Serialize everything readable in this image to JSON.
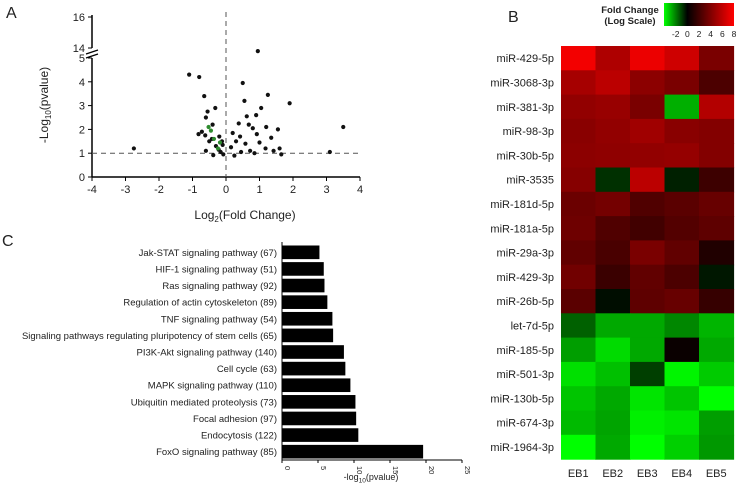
{
  "panels": {
    "a": "A",
    "b": "B",
    "c": "C"
  },
  "chart_data": [
    {
      "panel": "A",
      "type": "scatter",
      "xlabel": "Log2(Fold Change)",
      "ylabel": "-Log10(pvalue)",
      "xlim": [
        -4,
        4
      ],
      "ylim_lower": [
        0,
        5
      ],
      "ylim_upper": [
        14,
        16
      ],
      "x_ticks": [
        -4,
        -3,
        -2,
        -1,
        0,
        1,
        2,
        3,
        4
      ],
      "y_ticks": [
        0,
        1,
        2,
        3,
        4,
        5,
        14,
        16
      ],
      "threshold_y": 1,
      "threshold_x": 0,
      "points": [
        {
          "x": -2.75,
          "y": 1.2
        },
        {
          "x": -1.1,
          "y": 4.3
        },
        {
          "x": -0.8,
          "y": 4.2
        },
        {
          "x": -0.65,
          "y": 3.4
        },
        {
          "x": -0.6,
          "y": 2.5
        },
        {
          "x": -0.55,
          "y": 2.75
        },
        {
          "x": -0.82,
          "y": 1.8
        },
        {
          "x": -0.72,
          "y": 1.9
        },
        {
          "x": -0.62,
          "y": 1.75
        },
        {
          "x": -0.4,
          "y": 2.2
        },
        {
          "x": -0.32,
          "y": 2.9
        },
        {
          "x": -0.42,
          "y": 1.6
        },
        {
          "x": -0.2,
          "y": 1.7
        },
        {
          "x": -0.12,
          "y": 1.5
        },
        {
          "x": -0.5,
          "y": 1.5
        },
        {
          "x": -0.3,
          "y": 1.3
        },
        {
          "x": -0.6,
          "y": 1.1
        },
        {
          "x": -0.22,
          "y": 1.15
        },
        {
          "x": -0.1,
          "y": 1.35
        },
        {
          "x": -0.16,
          "y": 1.05
        },
        {
          "x": -0.08,
          "y": 0.95
        },
        {
          "x": -0.38,
          "y": 0.92
        },
        {
          "x": 0.5,
          "y": 3.95
        },
        {
          "x": 1.25,
          "y": 3.45
        },
        {
          "x": 0.55,
          "y": 3.2
        },
        {
          "x": 1.05,
          "y": 2.9
        },
        {
          "x": 1.9,
          "y": 3.1
        },
        {
          "x": 0.9,
          "y": 2.6
        },
        {
          "x": 0.62,
          "y": 2.55
        },
        {
          "x": 0.2,
          "y": 1.85
        },
        {
          "x": 0.38,
          "y": 2.25
        },
        {
          "x": 0.68,
          "y": 2.2
        },
        {
          "x": 1.2,
          "y": 2.1
        },
        {
          "x": 0.8,
          "y": 2.05
        },
        {
          "x": 1.55,
          "y": 2.0
        },
        {
          "x": 0.42,
          "y": 1.7
        },
        {
          "x": 0.92,
          "y": 1.8
        },
        {
          "x": 1.35,
          "y": 1.65
        },
        {
          "x": 0.3,
          "y": 1.5
        },
        {
          "x": 0.58,
          "y": 1.4
        },
        {
          "x": 1.0,
          "y": 1.45
        },
        {
          "x": 1.18,
          "y": 1.2
        },
        {
          "x": 0.72,
          "y": 1.1
        },
        {
          "x": 0.45,
          "y": 1.05
        },
        {
          "x": 0.85,
          "y": 1.0
        },
        {
          "x": 0.15,
          "y": 1.25
        },
        {
          "x": 1.6,
          "y": 1.2
        },
        {
          "x": 1.42,
          "y": 1.1
        },
        {
          "x": 0.25,
          "y": 0.9
        },
        {
          "x": 1.65,
          "y": 0.95
        },
        {
          "x": 3.5,
          "y": 2.1
        },
        {
          "x": 3.1,
          "y": 1.05
        },
        {
          "x": 0.95,
          "y": 13.8
        }
      ],
      "green_points": [
        {
          "x": -0.52,
          "y": 2.1
        },
        {
          "x": -0.45,
          "y": 1.95
        },
        {
          "x": -0.36,
          "y": 1.6
        },
        {
          "x": -0.18,
          "y": 1.45
        },
        {
          "x": -0.24,
          "y": 1.2
        }
      ]
    },
    {
      "panel": "B",
      "type": "heatmap",
      "legend_title": "Fold Change",
      "legend_subtitle": "(Log Scale)",
      "legend_ticks": [
        "-2",
        "0",
        "2",
        "4",
        "6",
        "8"
      ],
      "scale_min": -4,
      "scale_max": 8,
      "colors": {
        "low": "#00ff00",
        "mid": "#000000",
        "high": "#ff0000"
      },
      "columns": [
        "EB1",
        "EB2",
        "EB3",
        "EB4",
        "EB5"
      ],
      "rows": [
        "miR-429-5p",
        "miR-3068-3p",
        "miR-381-3p",
        "miR-98-3p",
        "miR-30b-5p",
        "miR-3535",
        "miR-181d-5p",
        "miR-181a-5p",
        "miR-29a-3p",
        "miR-429-3p",
        "miR-26b-5p",
        "let-7d-5p",
        "miR-185-5p",
        "miR-501-3p",
        "miR-130b-5p",
        "miR-674-3p",
        "miR-1964-3p"
      ],
      "values": [
        [
          7.5,
          4.8,
          7.2,
          6.0,
          3.0
        ],
        [
          4.5,
          5.3,
          3.6,
          3.0,
          1.6
        ],
        [
          3.8,
          4.0,
          3.0,
          -2.5,
          5.0
        ],
        [
          3.5,
          3.8,
          4.3,
          3.5,
          3.3
        ],
        [
          3.6,
          3.7,
          3.8,
          3.9,
          3.3
        ],
        [
          3.4,
          -0.5,
          5.3,
          -0.3,
          1.2
        ],
        [
          2.5,
          2.8,
          1.7,
          2.0,
          2.4
        ],
        [
          2.6,
          1.7,
          1.3,
          1.8,
          2.1
        ],
        [
          2.2,
          1.5,
          3.0,
          2.2,
          0.5
        ],
        [
          2.7,
          1.1,
          2.2,
          1.6,
          -0.2
        ],
        [
          2.0,
          -0.1,
          2.1,
          2.4,
          1.0
        ],
        [
          -1.2,
          -2.4,
          -2.4,
          -1.8,
          -2.6
        ],
        [
          -2.2,
          -3.3,
          -2.4,
          0.1,
          -2.4
        ],
        [
          -3.4,
          -2.8,
          -0.7,
          -3.8,
          -3.0
        ],
        [
          -2.9,
          -2.4,
          -3.5,
          -2.9,
          -4.0
        ],
        [
          -2.7,
          -2.3,
          -3.7,
          -3.5,
          -2.2
        ],
        [
          -4.0,
          -2.4,
          -4.0,
          -3.1,
          -2.1
        ]
      ]
    },
    {
      "panel": "C",
      "type": "bar",
      "orientation": "horizontal",
      "xlabel": "-log10(pvalue)",
      "xlim": [
        0,
        25
      ],
      "x_ticks": [
        0,
        5,
        10,
        15,
        20,
        25
      ],
      "categories": [
        "Jak-STAT signaling pathway (67)",
        "HIF-1 signaling pathway (51)",
        "Ras signaling pathway (92)",
        "Regulation of actin cytoskeleton (89)",
        "TNF signaling pathway (54)",
        "Signaling pathways regulating pluripotency of stem cells (65)",
        "PI3K-Akt signaling pathway (140)",
        "Cell cycle (63)",
        "MAPK signaling pathway (110)",
        "Ubiquitin mediated proteolysis (73)",
        "Focal adhesion (97)",
        "Endocytosis (122)",
        "FoxO signaling pathway (85)"
      ],
      "values": [
        5.2,
        5.8,
        5.9,
        6.3,
        7.0,
        7.1,
        8.6,
        8.8,
        9.5,
        10.2,
        10.3,
        10.6,
        19.6
      ]
    }
  ]
}
